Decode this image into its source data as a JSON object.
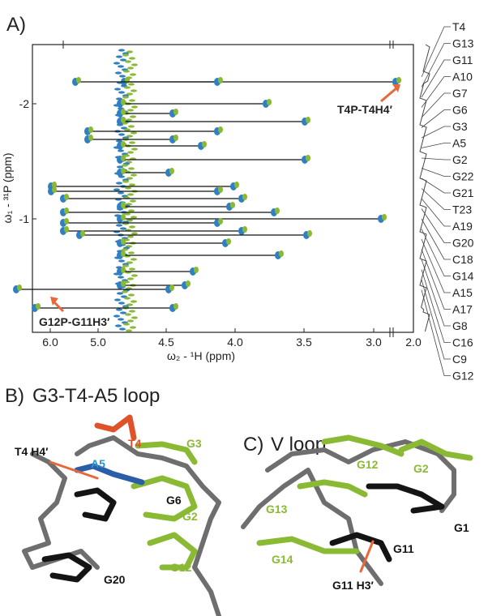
{
  "panel_a": {
    "label": "A)",
    "x_axis_label": "ω₂ - ¹H (ppm)",
    "y_axis_label": "ω₁ - ³¹P (ppm)",
    "x_ticks": [
      "6.0",
      "5.0",
      "4.5",
      "4.0",
      "3.5",
      "3.0",
      "2.0"
    ],
    "y_ticks": [
      "-2",
      "-1"
    ],
    "annotations": [
      "T4P-T4H4′",
      "G12P-G11H3′"
    ],
    "assignments": [
      "T4",
      "G13",
      "G11",
      "A10",
      "G7",
      "G6",
      "G3",
      "A5",
      "G2",
      "G22",
      "G21",
      "T23",
      "A19",
      "G20",
      "C18",
      "G14",
      "A15",
      "A17",
      "G8",
      "C16",
      "C9",
      "G12"
    ]
  },
  "panel_b": {
    "label": "B)",
    "title": "G3-T4-A5 loop",
    "labels": [
      "T4 H4′",
      "T4",
      "G3",
      "A5",
      "G6",
      "G2",
      "G20",
      "G12"
    ]
  },
  "panel_c": {
    "label": "C)",
    "title": "V loop",
    "labels": [
      "G12",
      "G2",
      "G13",
      "G1",
      "G11",
      "G14",
      "G11 H3′"
    ]
  }
}
